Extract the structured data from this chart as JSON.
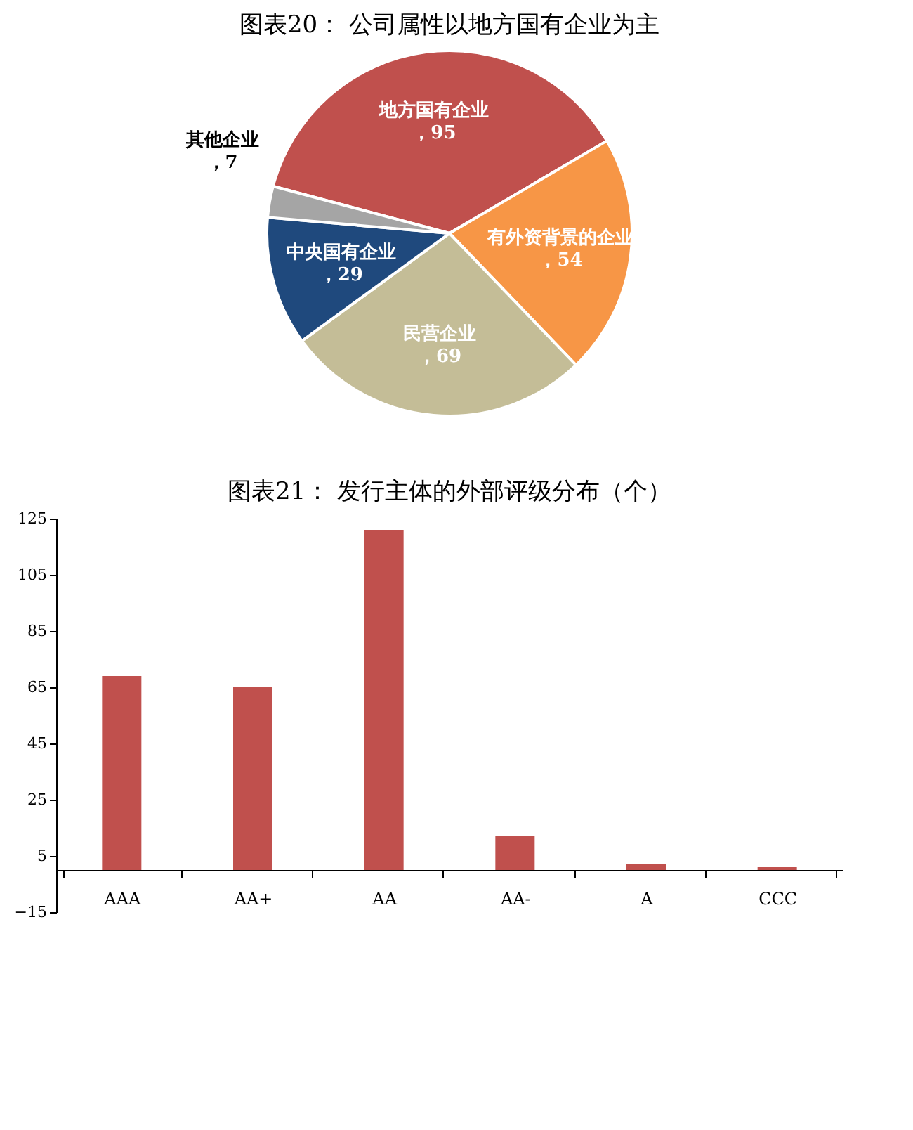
{
  "chart_data": [
    {
      "type": "pie",
      "title": "图表20：      公司属性以地方国有企业为主",
      "categories": [
        "地方国有企业",
        "有外资背景的企业",
        "民营企业",
        "中央国有企业",
        "其他企业"
      ],
      "values": [
        95,
        54,
        69,
        29,
        7
      ],
      "colors": [
        "#c0504d",
        "#f79646",
        "#c4bd97",
        "#1f497d",
        "#a5a5a5"
      ],
      "value_labels": [
        "，95",
        "，54",
        "，69",
        "，29",
        "，7"
      ]
    },
    {
      "type": "bar",
      "title": "图表21：      发行主体的外部评级分布（个）",
      "categories": [
        "AAA",
        "AA+",
        "AA",
        "AA-",
        "A",
        "CCC"
      ],
      "values": [
        69,
        65,
        121,
        12,
        2,
        1
      ],
      "color": "#c0504d",
      "ylim": [
        -15,
        125
      ],
      "yticks": [
        -15,
        5,
        25,
        45,
        65,
        85,
        105,
        125
      ],
      "grid": false
    }
  ]
}
